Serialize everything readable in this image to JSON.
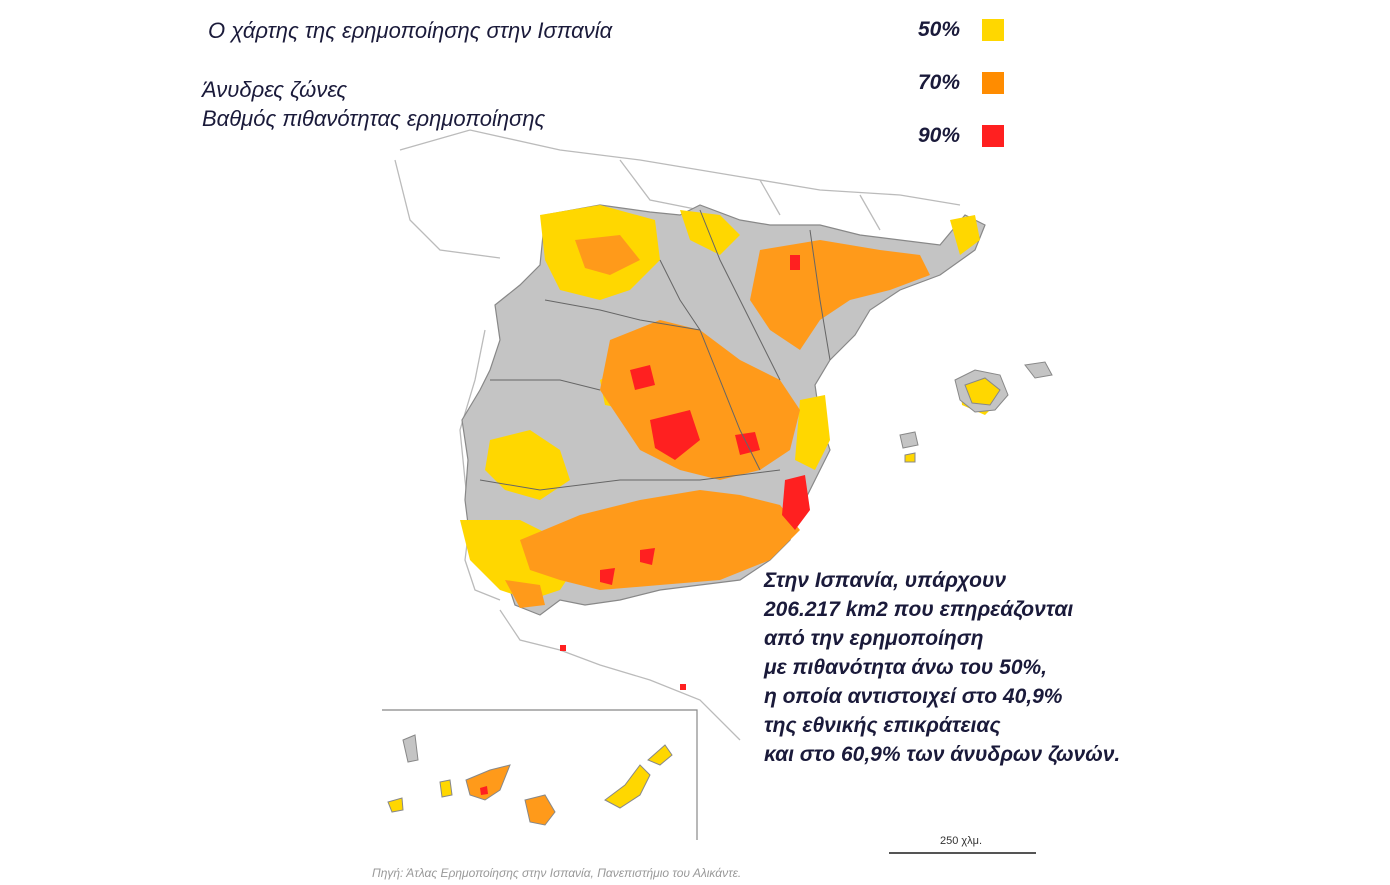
{
  "title": "Ο χάρτης της ερημοποίησης στην Ισπανία",
  "subtitle_line1": "Άνυδρες ζώνες",
  "subtitle_line2": "Βαθμός πιθανότητας ερημοποίησης",
  "legend": [
    {
      "label": "50%",
      "color": "#ffd700"
    },
    {
      "label": "70%",
      "color": "#ff8c00"
    },
    {
      "label": "90%",
      "color": "#ff2020"
    }
  ],
  "colors": {
    "arid_zone": "#c4c4c4",
    "borders": "#999999",
    "background": "#ffffff"
  },
  "description_lines": [
    "Στην Ισπανία, υπάρχουν",
    "206.217 km2 που επηρεάζονται",
    "από την ερημοποίηση",
    "με πιθανότητα άνω του 50%,",
    "η οποία αντιστοιχεί στο 40,9%",
    "της εθνικής επικράτειας",
    "και στο 60,9% των άνυδρων ζωνών."
  ],
  "scale_label": "250 χλμ.",
  "source": "Πηγή: Άτλας Ερημοποίησης στην Ισπανία, Πανεπιστήμιο του Αλικάντε."
}
